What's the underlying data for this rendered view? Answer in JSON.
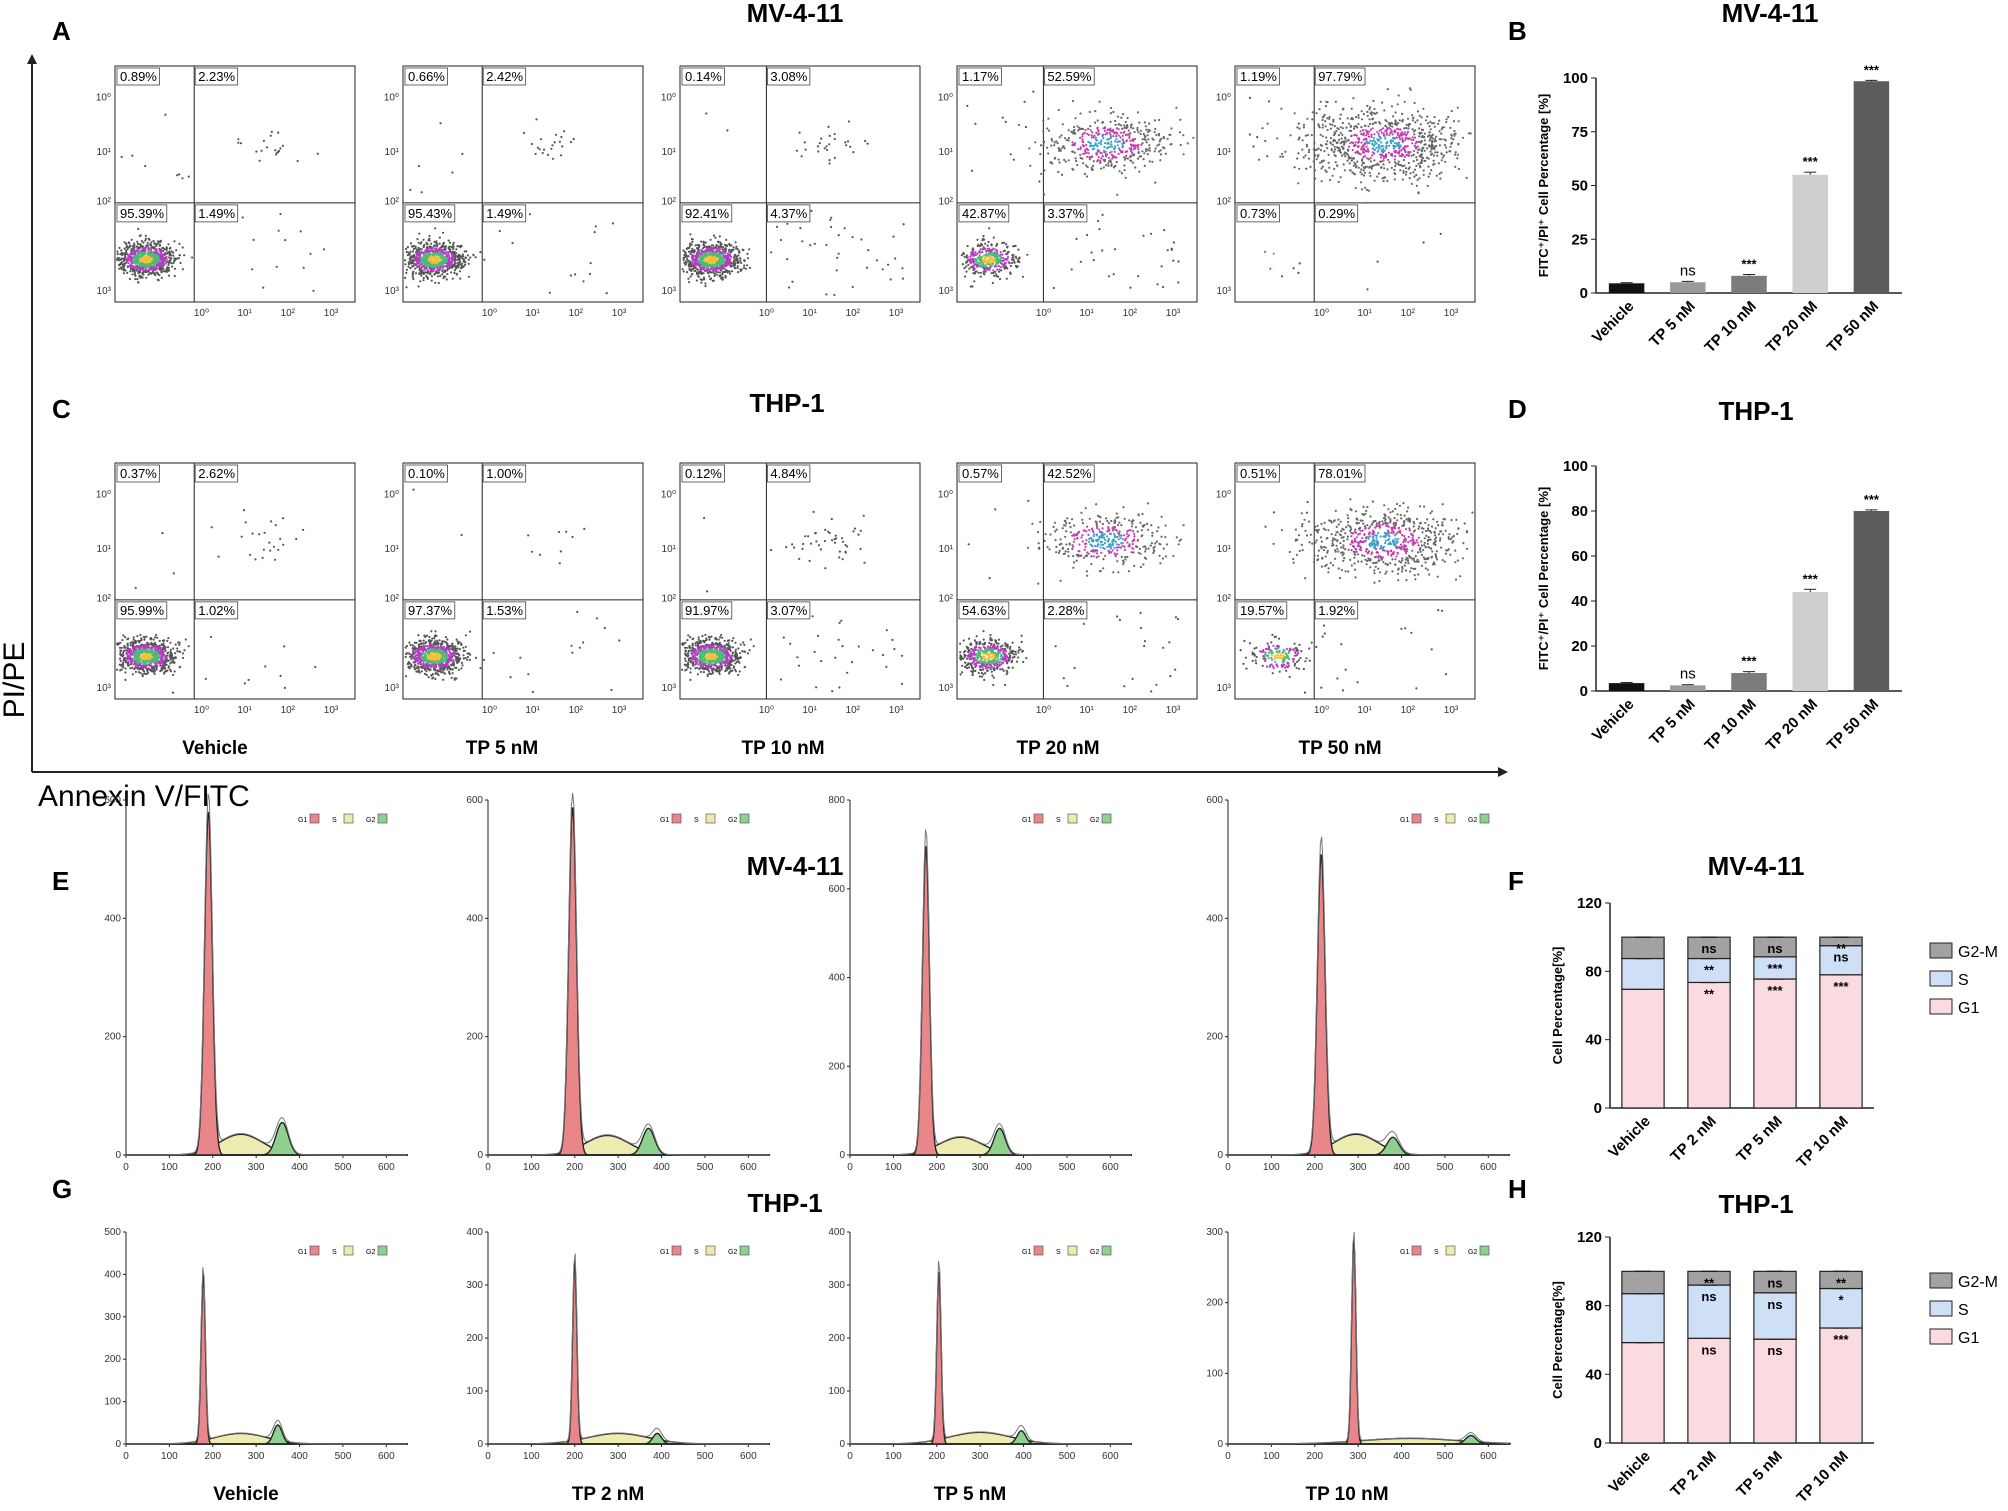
{
  "panel_labels": {
    "A": "A",
    "B": "B",
    "C": "C",
    "D": "D",
    "E": "E",
    "F": "F",
    "G": "G",
    "H": "H"
  },
  "axis_titles": {
    "y": "PI/PE",
    "x": "Annexin V/FITC"
  },
  "flow_ticks": [
    "10⁰",
    "10¹",
    "10²",
    "10³"
  ],
  "conditions_apoptosis": [
    "Vehicle",
    "TP 5 nM",
    "TP 10 nM",
    "TP 20 nM",
    "TP 50 nM"
  ],
  "conditions_cycle": [
    "Vehicle",
    "TP 2 nM",
    "TP 5 nM",
    "TP 10 nM"
  ],
  "histogram_legend": [
    "G1",
    "S",
    "G2"
  ],
  "chart_data": [
    {
      "panel": "A",
      "type": "scatter",
      "title": "MV-4-11",
      "xlabel": "Annexin V/FITC",
      "ylabel": "PI/PE",
      "plots": [
        {
          "condition": "Vehicle",
          "quadrants": {
            "ul": "0.89%",
            "ur": "2.23%",
            "ll": "95.39%",
            "lr": "1.49%"
          }
        },
        {
          "condition": "TP 5 nM",
          "quadrants": {
            "ul": "0.66%",
            "ur": "2.42%",
            "ll": "95.43%",
            "lr": "1.49%"
          }
        },
        {
          "condition": "TP 10 nM",
          "quadrants": {
            "ul": "0.14%",
            "ur": "3.08%",
            "ll": "92.41%",
            "lr": "4.37%"
          }
        },
        {
          "condition": "TP 20 nM",
          "quadrants": {
            "ul": "1.17%",
            "ur": "52.59%",
            "ll": "42.87%",
            "lr": "3.37%"
          }
        },
        {
          "condition": "TP 50 nM",
          "quadrants": {
            "ul": "1.19%",
            "ur": "97.79%",
            "ll": "0.73%",
            "lr": "0.29%"
          }
        }
      ]
    },
    {
      "panel": "B",
      "type": "bar",
      "title": "MV-4-11",
      "ylabel": "FITC⁺/PI⁺ Cell Percentage [%]",
      "categories": [
        "Vehicle",
        "TP 5 nM",
        "TP 10 nM",
        "TP 20 nM",
        "TP 50 nM"
      ],
      "values": [
        4.5,
        5,
        8,
        55,
        98.5
      ],
      "errors": [
        0.3,
        0.4,
        0.6,
        1.2,
        0.4
      ],
      "significance": [
        "",
        "ns",
        "***",
        "***",
        "***"
      ],
      "colors": [
        "#111111",
        "#9a9a9a",
        "#7c7c7c",
        "#cfcfcf",
        "#5c5c5c"
      ],
      "ylim": [
        0,
        100
      ],
      "yticks": [
        0,
        25,
        50,
        75,
        100
      ]
    },
    {
      "panel": "C",
      "type": "scatter",
      "title": "THP-1",
      "xlabel": "Annexin V/FITC",
      "ylabel": "PI/PE",
      "plots": [
        {
          "condition": "Vehicle",
          "quadrants": {
            "ul": "0.37%",
            "ur": "2.62%",
            "ll": "95.99%",
            "lr": "1.02%"
          }
        },
        {
          "condition": "TP 5 nM",
          "quadrants": {
            "ul": "0.10%",
            "ur": "1.00%",
            "ll": "97.37%",
            "lr": "1.53%"
          }
        },
        {
          "condition": "TP 10 nM",
          "quadrants": {
            "ul": "0.12%",
            "ur": "4.84%",
            "ll": "91.97%",
            "lr": "3.07%"
          }
        },
        {
          "condition": "TP 20 nM",
          "quadrants": {
            "ul": "0.57%",
            "ur": "42.52%",
            "ll": "54.63%",
            "lr": "2.28%"
          }
        },
        {
          "condition": "TP 50 nM",
          "quadrants": {
            "ul": "0.51%",
            "ur": "78.01%",
            "ll": "19.57%",
            "lr": "1.92%"
          }
        }
      ]
    },
    {
      "panel": "D",
      "type": "bar",
      "title": "THP-1",
      "ylabel": "FITC⁺/PI⁺ Cell Percentage [%]",
      "categories": [
        "Vehicle",
        "TP 5 nM",
        "TP 10 nM",
        "TP 20 nM",
        "TP 50 nM"
      ],
      "values": [
        3.5,
        2.5,
        8,
        44,
        80
      ],
      "errors": [
        0.3,
        0.3,
        0.6,
        1.2,
        0.5
      ],
      "significance": [
        "",
        "ns",
        "***",
        "***",
        "***"
      ],
      "colors": [
        "#111111",
        "#9a9a9a",
        "#7c7c7c",
        "#cfcfcf",
        "#5c5c5c"
      ],
      "ylim": [
        0,
        100
      ],
      "yticks": [
        0,
        20,
        40,
        60,
        80,
        100
      ]
    },
    {
      "panel": "E",
      "type": "area",
      "title": "MV-4-11",
      "xticks": [
        0,
        100,
        200,
        300,
        400,
        500,
        600
      ],
      "plots": [
        {
          "condition": "Vehicle",
          "ymax": 600,
          "yticks": [
            0,
            200,
            400,
            600
          ],
          "g1": {
            "center": 190,
            "height": 580,
            "width": 9
          },
          "s": {
            "center": 265,
            "height": 35,
            "width": 50
          },
          "g2": {
            "center": 360,
            "height": 55,
            "width": 14
          }
        },
        {
          "condition": "TP 2 nM",
          "ymax": 600,
          "yticks": [
            0,
            200,
            400,
            600
          ],
          "g1": {
            "center": 195,
            "height": 590,
            "width": 9
          },
          "s": {
            "center": 275,
            "height": 33,
            "width": 50
          },
          "g2": {
            "center": 370,
            "height": 45,
            "width": 14
          }
        },
        {
          "condition": "TP 5 nM",
          "ymax": 800,
          "yticks": [
            0,
            200,
            400,
            600,
            800
          ],
          "g1": {
            "center": 175,
            "height": 700,
            "width": 8
          },
          "s": {
            "center": 255,
            "height": 40,
            "width": 50
          },
          "g2": {
            "center": 345,
            "height": 60,
            "width": 13
          }
        },
        {
          "condition": "TP 10 nM",
          "ymax": 600,
          "yticks": [
            0,
            200,
            400,
            600
          ],
          "g1": {
            "center": 215,
            "height": 510,
            "width": 9
          },
          "s": {
            "center": 295,
            "height": 35,
            "width": 50
          },
          "g2": {
            "center": 380,
            "height": 30,
            "width": 14
          }
        }
      ]
    },
    {
      "panel": "F",
      "type": "bar",
      "title": "MV-4-11",
      "stacked": true,
      "ylabel": "Cell Percentage[%]",
      "categories": [
        "Vehicle",
        "TP 2 nM",
        "TP 5 nM",
        "TP 10 nM"
      ],
      "series": [
        {
          "name": "G1",
          "values": [
            69.5,
            73.5,
            75.5,
            78
          ],
          "color": "#f9dbe0",
          "significance": [
            "",
            "**",
            "***",
            "***"
          ]
        },
        {
          "name": "S",
          "values": [
            18,
            14,
            13,
            17
          ],
          "color": "#cfe0f6",
          "significance": [
            "",
            "**",
            "***",
            "ns"
          ]
        },
        {
          "name": "G2-M",
          "values": [
            12.5,
            12.5,
            11.5,
            5
          ],
          "color": "#a2a2a2",
          "significance": [
            "",
            "ns",
            "ns",
            "**"
          ]
        }
      ],
      "ylim": [
        0,
        120
      ],
      "yticks": [
        0,
        40,
        80,
        120
      ]
    },
    {
      "panel": "G",
      "type": "area",
      "title": "THP-1",
      "xticks": [
        0,
        100,
        200,
        300,
        400,
        500,
        600
      ],
      "plots": [
        {
          "condition": "Vehicle",
          "ymax": 500,
          "yticks": [
            0,
            100,
            200,
            300,
            400,
            500
          ],
          "g1": {
            "center": 178,
            "height": 400,
            "width": 5
          },
          "s": {
            "center": 265,
            "height": 25,
            "width": 60
          },
          "g2": {
            "center": 350,
            "height": 45,
            "width": 10
          }
        },
        {
          "condition": "TP 2 nM",
          "ymax": 400,
          "yticks": [
            0,
            100,
            200,
            300,
            400
          ],
          "g1": {
            "center": 200,
            "height": 345,
            "width": 5
          },
          "s": {
            "center": 300,
            "height": 20,
            "width": 70
          },
          "g2": {
            "center": 390,
            "height": 20,
            "width": 10
          }
        },
        {
          "condition": "TP 5 nM",
          "ymax": 400,
          "yticks": [
            0,
            100,
            200,
            300,
            400
          ],
          "g1": {
            "center": 205,
            "height": 330,
            "width": 5
          },
          "s": {
            "center": 300,
            "height": 22,
            "width": 70
          },
          "g2": {
            "center": 395,
            "height": 25,
            "width": 10
          }
        },
        {
          "condition": "TP 10 nM",
          "ymax": 300,
          "yticks": [
            0,
            100,
            200,
            300
          ],
          "g1": {
            "center": 290,
            "height": 290,
            "width": 5
          },
          "s": {
            "center": 420,
            "height": 8,
            "width": 110
          },
          "g2": {
            "center": 560,
            "height": 12,
            "width": 12
          }
        }
      ]
    },
    {
      "panel": "H",
      "type": "bar",
      "title": "THP-1",
      "stacked": true,
      "ylabel": "Cell Percentage[%]",
      "categories": [
        "Vehicle",
        "TP 2 nM",
        "TP 5 nM",
        "TP 10 nM"
      ],
      "series": [
        {
          "name": "G1",
          "values": [
            58.5,
            61,
            60.5,
            67
          ],
          "color": "#f9dbe0",
          "significance": [
            "",
            "ns",
            "ns",
            "***"
          ]
        },
        {
          "name": "S",
          "values": [
            28.5,
            31,
            27,
            23
          ],
          "color": "#cfe0f6",
          "significance": [
            "",
            "ns",
            "ns",
            "*"
          ]
        },
        {
          "name": "G2-M",
          "values": [
            13,
            8,
            12.5,
            10
          ],
          "color": "#a2a2a2",
          "significance": [
            "",
            "**",
            "ns",
            "**"
          ]
        }
      ],
      "ylim": [
        0,
        120
      ],
      "yticks": [
        0,
        40,
        80,
        120
      ]
    }
  ]
}
